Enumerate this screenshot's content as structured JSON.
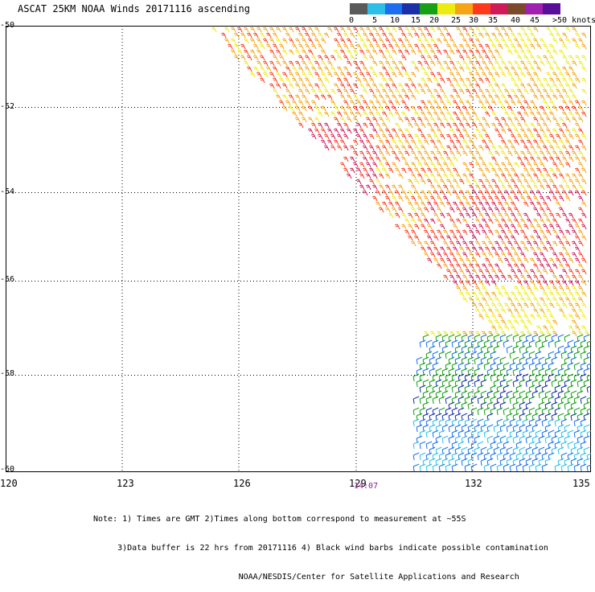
{
  "title": "ASCAT 25KM NOAA Winds 20171116 ascending",
  "legend": {
    "labels": [
      "0",
      "5",
      "10",
      "15",
      "20",
      "25",
      "30",
      "35",
      "40",
      "45",
      ">50 knots"
    ],
    "colors": [
      "#5a5a5a",
      "#2dbfe8",
      "#1d6ff0",
      "#1a2fa8",
      "#15a015",
      "#ecec12",
      "#f5a515",
      "#ff3a1a",
      "#cf1a5a",
      "#7a4a2a",
      "#a020b0",
      "#5a0f9a"
    ]
  },
  "map": {
    "lon_ticks": [
      "120",
      "123",
      "126",
      "129",
      "132",
      "135"
    ],
    "lat_ticks": [
      "-50",
      "-52",
      "-54",
      "-56",
      "-58",
      "-60"
    ],
    "pass_time": "14:07"
  },
  "note_lines": [
    "Note: 1) Times are GMT 2)Times along bottom correspond to measurement at ~55S",
    "     3)Data buffer is 22 hrs from 20171116 4) Black wind barbs indicate possible contamination",
    "                              NOAA/NESDIS/Center for Satellite Applications and Research"
  ]
}
